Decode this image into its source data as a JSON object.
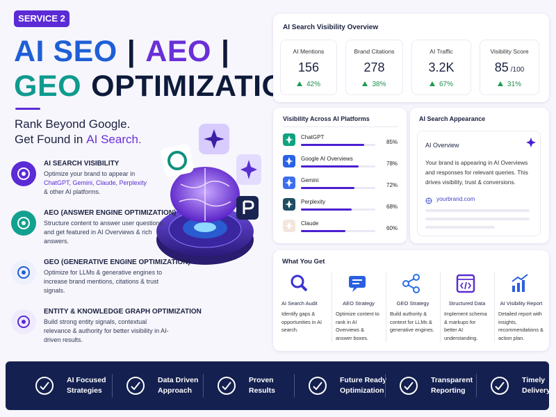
{
  "badge": "SERVICE 2",
  "title": {
    "line1": [
      "AI SEO",
      "|",
      "AEO",
      "|"
    ],
    "line2": [
      "GEO",
      "OPTIMIZATION"
    ]
  },
  "tagline": {
    "line1": "Rank Beyond Google.",
    "line2": "Get Found in",
    "highlight": "AI Search."
  },
  "services": [
    {
      "title": "AI SEARCH VISIBILITY",
      "desc": [
        "Optimize your brand to appear in",
        "ChatGPT, Gemini, Claude, Perplexity",
        "& other AI platforms."
      ]
    },
    {
      "title": "AEO (ANSWER ENGINE OPTIMIZATION)",
      "desc": [
        "Structure content to answer user questions and get featured in AI Overviews & rich answers."
      ]
    },
    {
      "title": "GEO (GENERATIVE ENGINE OPTIMIZATION)",
      "desc": [
        "Optimize for LLMs & generative engines to increase brand mentions, citations & trust signals."
      ]
    },
    {
      "title": "ENTITY & KNOWLEDGE GRAPH OPTIMIZATION",
      "desc": [
        "Build strong entity signals, contextual relevance & authority for better visibility in AI-driven results."
      ]
    }
  ],
  "overview": {
    "title": "AI Search Visibility Overview",
    "metrics": [
      {
        "label": "AI Mentions",
        "value": 156,
        "change": "42%"
      },
      {
        "label": "Brand Citations",
        "value": 278,
        "change": "38%"
      },
      {
        "label": "AI Traffic",
        "value": "3.2K",
        "change": "67%"
      },
      {
        "label": "Visibility Score",
        "value": 85,
        "unit": "/100",
        "change": "31%"
      }
    ]
  },
  "platforms": {
    "title": "Visibility Across AI Platforms",
    "names": [
      "ChatGPT",
      "Google AI Overviews",
      "Gemini",
      "Perplexity",
      "Claude"
    ],
    "values": [
      85,
      78,
      72,
      68,
      60
    ],
    "value_labels": [
      "85%",
      "78%",
      "72%",
      "68%",
      "60%"
    ],
    "xlim": [
      0,
      100
    ]
  },
  "appearance": {
    "title": "AI Search Appearance",
    "card_title": "AI Overview",
    "text": "Your brand is appearing in AI Overviews and responses for relevant queries. This drives visibility, trust & conversions.",
    "link": "yourbrand.com"
  },
  "what_you_get": {
    "title": "What You Get",
    "items": [
      {
        "title": "AI Search Audit",
        "desc": "Identify gaps & opportunities in AI search."
      },
      {
        "title": "AEO Strategy",
        "desc": "Optimize content to rank in AI Overviews & answer boxes."
      },
      {
        "title": "GEO Strategy",
        "desc": "Build authority & context for LLMs & generative engines."
      },
      {
        "title": "Structured Data",
        "desc": "Implement schema & markups for better AI understanding."
      },
      {
        "title": "AI Visibility Report",
        "desc": "Detailed report with insights, recommendations & action plan."
      }
    ]
  },
  "footer": [
    [
      "AI Focused",
      "Strategies"
    ],
    [
      "Data Driven",
      "Approach"
    ],
    [
      "Proven",
      "Results"
    ],
    [
      "Future Ready",
      "Optimization"
    ],
    [
      "Transparent",
      "Reporting"
    ],
    [
      "Timely",
      "Delivery"
    ]
  ]
}
